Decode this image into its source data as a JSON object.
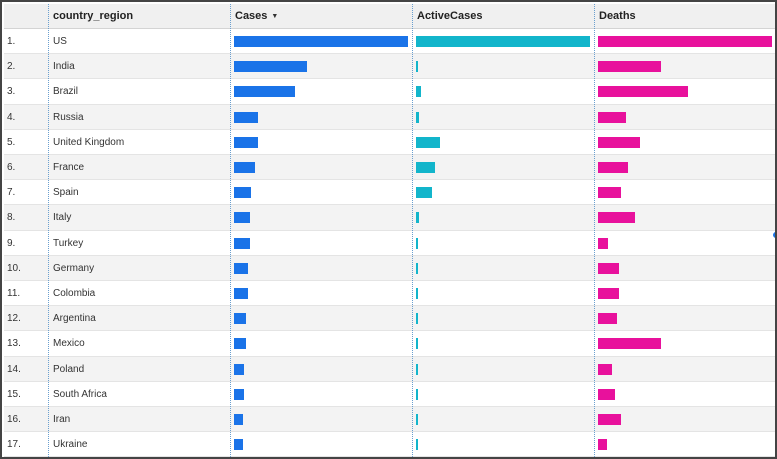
{
  "chart_data": {
    "type": "table",
    "columns": [
      {
        "key": "index",
        "label": ""
      },
      {
        "key": "country_region",
        "label": "country_region"
      },
      {
        "key": "cases",
        "label": "Cases",
        "sorted": "descending",
        "sort_icon": "▼"
      },
      {
        "key": "active_cases",
        "label": "ActiveCases"
      },
      {
        "key": "deaths",
        "label": "Deaths"
      }
    ],
    "bar_colors": {
      "cases": "#1a73e8",
      "active_cases": "#12b5cb",
      "deaths": "#e8119c"
    },
    "rows": [
      {
        "index": "1.",
        "country_region": "US",
        "cases": 1.0,
        "active_cases": 1.0,
        "deaths": 1.0
      },
      {
        "index": "2.",
        "country_region": "India",
        "cases": 0.42,
        "active_cases": 0.01,
        "deaths": 0.36
      },
      {
        "index": "3.",
        "country_region": "Brazil",
        "cases": 0.35,
        "active_cases": 0.03,
        "deaths": 0.52
      },
      {
        "index": "4.",
        "country_region": "Russia",
        "cases": 0.14,
        "active_cases": 0.02,
        "deaths": 0.16
      },
      {
        "index": "5.",
        "country_region": "United Kingdom",
        "cases": 0.14,
        "active_cases": 0.14,
        "deaths": 0.24
      },
      {
        "index": "6.",
        "country_region": "France",
        "cases": 0.12,
        "active_cases": 0.11,
        "deaths": 0.17
      },
      {
        "index": "7.",
        "country_region": "Spain",
        "cases": 0.1,
        "active_cases": 0.09,
        "deaths": 0.13
      },
      {
        "index": "8.",
        "country_region": "Italy",
        "cases": 0.09,
        "active_cases": 0.02,
        "deaths": 0.21
      },
      {
        "index": "9.",
        "country_region": "Turkey",
        "cases": 0.09,
        "active_cases": 0.003,
        "deaths": 0.06
      },
      {
        "index": "10.",
        "country_region": "Germany",
        "cases": 0.08,
        "active_cases": 0.01,
        "deaths": 0.12
      },
      {
        "index": "11.",
        "country_region": "Colombia",
        "cases": 0.08,
        "active_cases": 0.005,
        "deaths": 0.12
      },
      {
        "index": "12.",
        "country_region": "Argentina",
        "cases": 0.07,
        "active_cases": 0.005,
        "deaths": 0.11
      },
      {
        "index": "13.",
        "country_region": "Mexico",
        "cases": 0.07,
        "active_cases": 0.01,
        "deaths": 0.36
      },
      {
        "index": "14.",
        "country_region": "Poland",
        "cases": 0.06,
        "active_cases": 0.005,
        "deaths": 0.08
      },
      {
        "index": "15.",
        "country_region": "South Africa",
        "cases": 0.06,
        "active_cases": 0.005,
        "deaths": 0.1
      },
      {
        "index": "16.",
        "country_region": "Iran",
        "cases": 0.05,
        "active_cases": 0.005,
        "deaths": 0.13
      },
      {
        "index": "17.",
        "country_region": "Ukraine",
        "cases": 0.05,
        "active_cases": 0.005,
        "deaths": 0.05
      }
    ]
  }
}
